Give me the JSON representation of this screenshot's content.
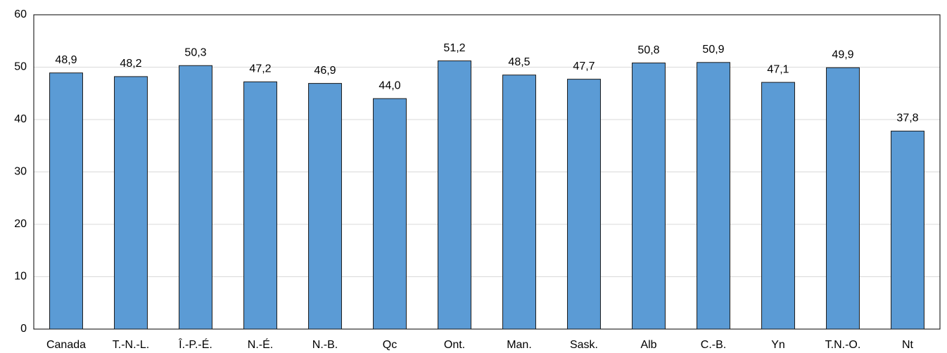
{
  "chart_data": {
    "type": "bar",
    "categories": [
      "Canada",
      "T.-N.-L.",
      "Î.-P.-É.",
      "N.-É.",
      "N.-B.",
      "Qc",
      "Ont.",
      "Man.",
      "Sask.",
      "Alb",
      "C.-B.",
      "Yn",
      "T.N.-O.",
      "Nt"
    ],
    "values": [
      48.9,
      48.2,
      50.3,
      47.2,
      46.9,
      44.0,
      51.2,
      48.5,
      47.7,
      50.8,
      50.9,
      47.1,
      49.9,
      37.8
    ],
    "value_labels": [
      "48,9",
      "48,2",
      "50,3",
      "47,2",
      "46,9",
      "44,0",
      "51,2",
      "48,5",
      "47,7",
      "50,8",
      "50,9",
      "47,1",
      "49,9",
      "37,8"
    ],
    "color": "#5b9bd5",
    "ylim": [
      0,
      60
    ],
    "yticks": [
      0,
      10,
      20,
      30,
      40,
      50,
      60
    ],
    "grid": true
  }
}
